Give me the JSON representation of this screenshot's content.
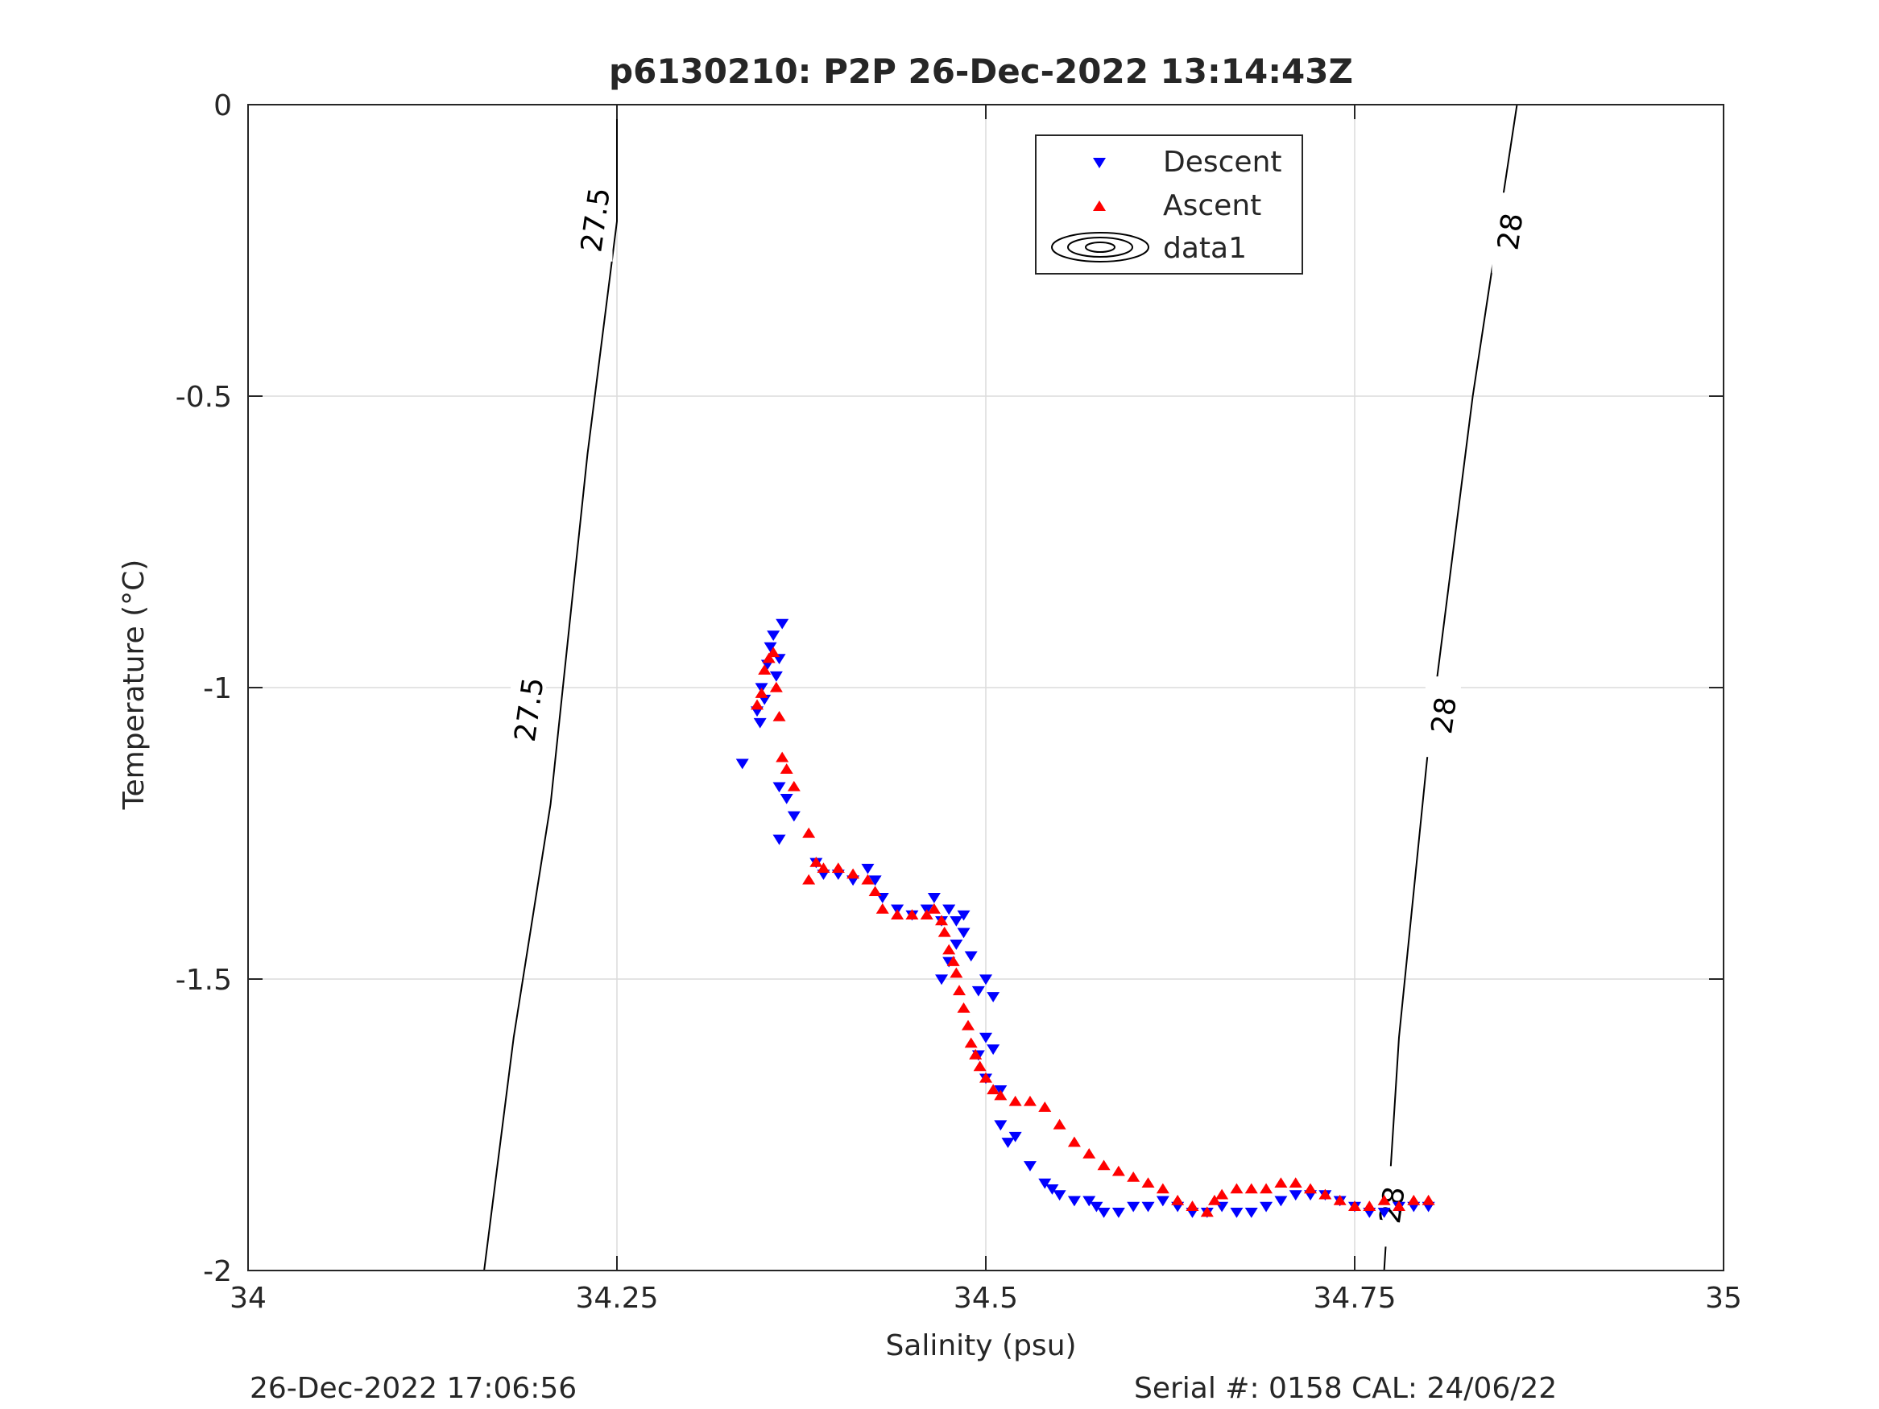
{
  "chart_data": {
    "type": "scatter",
    "title": "p6130210: P2P 26-Dec-2022 13:14:43Z",
    "xlabel": "Salinity (psu)",
    "ylabel": "Temperature (°C)",
    "xlim": [
      34,
      35
    ],
    "ylim": [
      -2,
      0
    ],
    "xticks": [
      "34",
      "34.25",
      "34.5",
      "34.75",
      "35"
    ],
    "yticks": [
      "0",
      "-0.5",
      "-1",
      "-1.5",
      "-2"
    ],
    "grid": true,
    "legend": {
      "placement": "top-center-right",
      "entries": [
        "Descent",
        "Ascent",
        "data1"
      ]
    },
    "colors": {
      "descent": "#0000ff",
      "ascent": "#ff0000",
      "contour": "#000000",
      "grid": "#dcdcdc"
    },
    "contours": [
      {
        "label": "27.5",
        "points": [
          [
            34.16,
            -2.0
          ],
          [
            34.18,
            -1.6
          ],
          [
            34.205,
            -1.2
          ],
          [
            34.23,
            -0.6
          ],
          [
            34.25,
            -0.2
          ],
          [
            34.25,
            0.0
          ]
        ]
      },
      {
        "label": "28",
        "points": [
          [
            34.77,
            -2.0
          ],
          [
            34.78,
            -1.6
          ],
          [
            34.8,
            -1.1
          ],
          [
            34.83,
            -0.5
          ],
          [
            34.86,
            0.0
          ]
        ]
      }
    ],
    "contour_labels": [
      {
        "text": "27.5",
        "x": 34.235,
        "y": -0.2
      },
      {
        "text": "27.5",
        "x": 34.19,
        "y": -1.04
      },
      {
        "text": "28",
        "x": 34.855,
        "y": -0.22
      },
      {
        "text": "28",
        "x": 34.81,
        "y": -1.05
      },
      {
        "text": "28",
        "x": 34.775,
        "y": -1.89
      }
    ],
    "series": [
      {
        "name": "Descent",
        "marker": "triangle-down",
        "points": [
          [
            34.335,
            -1.13
          ],
          [
            34.345,
            -1.04
          ],
          [
            34.347,
            -1.06
          ],
          [
            34.348,
            -1.0
          ],
          [
            34.35,
            -1.02
          ],
          [
            34.352,
            -0.96
          ],
          [
            34.354,
            -0.93
          ],
          [
            34.356,
            -0.91
          ],
          [
            34.358,
            -0.98
          ],
          [
            34.36,
            -0.95
          ],
          [
            34.362,
            -0.89
          ],
          [
            34.36,
            -1.17
          ],
          [
            34.365,
            -1.19
          ],
          [
            34.37,
            -1.22
          ],
          [
            34.36,
            -1.26
          ],
          [
            34.385,
            -1.3
          ],
          [
            34.39,
            -1.32
          ],
          [
            34.4,
            -1.32
          ],
          [
            34.41,
            -1.33
          ],
          [
            34.42,
            -1.31
          ],
          [
            34.425,
            -1.33
          ],
          [
            34.43,
            -1.36
          ],
          [
            34.44,
            -1.38
          ],
          [
            34.45,
            -1.39
          ],
          [
            34.46,
            -1.38
          ],
          [
            34.465,
            -1.36
          ],
          [
            34.47,
            -1.4
          ],
          [
            34.475,
            -1.38
          ],
          [
            34.48,
            -1.4
          ],
          [
            34.485,
            -1.39
          ],
          [
            34.47,
            -1.5
          ],
          [
            34.475,
            -1.47
          ],
          [
            34.48,
            -1.44
          ],
          [
            34.485,
            -1.42
          ],
          [
            34.49,
            -1.46
          ],
          [
            34.495,
            -1.52
          ],
          [
            34.5,
            -1.5
          ],
          [
            34.505,
            -1.53
          ],
          [
            34.5,
            -1.6
          ],
          [
            34.495,
            -1.63
          ],
          [
            34.505,
            -1.62
          ],
          [
            34.5,
            -1.67
          ],
          [
            34.51,
            -1.69
          ],
          [
            34.51,
            -1.75
          ],
          [
            34.515,
            -1.78
          ],
          [
            34.52,
            -1.77
          ],
          [
            34.53,
            -1.82
          ],
          [
            34.54,
            -1.85
          ],
          [
            34.545,
            -1.86
          ],
          [
            34.55,
            -1.87
          ],
          [
            34.56,
            -1.88
          ],
          [
            34.57,
            -1.88
          ],
          [
            34.575,
            -1.89
          ],
          [
            34.58,
            -1.9
          ],
          [
            34.59,
            -1.9
          ],
          [
            34.6,
            -1.89
          ],
          [
            34.61,
            -1.89
          ],
          [
            34.62,
            -1.88
          ],
          [
            34.63,
            -1.89
          ],
          [
            34.64,
            -1.9
          ],
          [
            34.65,
            -1.9
          ],
          [
            34.66,
            -1.89
          ],
          [
            34.67,
            -1.9
          ],
          [
            34.68,
            -1.9
          ],
          [
            34.69,
            -1.89
          ],
          [
            34.7,
            -1.88
          ],
          [
            34.71,
            -1.87
          ],
          [
            34.72,
            -1.87
          ],
          [
            34.73,
            -1.87
          ],
          [
            34.74,
            -1.88
          ],
          [
            34.75,
            -1.89
          ],
          [
            34.76,
            -1.9
          ],
          [
            34.77,
            -1.9
          ],
          [
            34.78,
            -1.89
          ],
          [
            34.79,
            -1.89
          ],
          [
            34.8,
            -1.89
          ]
        ]
      },
      {
        "name": "Ascent",
        "marker": "triangle-up",
        "points": [
          [
            34.345,
            -1.03
          ],
          [
            34.348,
            -1.01
          ],
          [
            34.35,
            -0.97
          ],
          [
            34.353,
            -0.95
          ],
          [
            34.356,
            -0.94
          ],
          [
            34.358,
            -1.0
          ],
          [
            34.36,
            -1.05
          ],
          [
            34.362,
            -1.12
          ],
          [
            34.365,
            -1.14
          ],
          [
            34.37,
            -1.17
          ],
          [
            34.38,
            -1.25
          ],
          [
            34.38,
            -1.33
          ],
          [
            34.385,
            -1.3
          ],
          [
            34.39,
            -1.31
          ],
          [
            34.4,
            -1.31
          ],
          [
            34.41,
            -1.32
          ],
          [
            34.42,
            -1.33
          ],
          [
            34.425,
            -1.35
          ],
          [
            34.43,
            -1.38
          ],
          [
            34.44,
            -1.39
          ],
          [
            34.45,
            -1.39
          ],
          [
            34.46,
            -1.39
          ],
          [
            34.465,
            -1.38
          ],
          [
            34.47,
            -1.4
          ],
          [
            34.472,
            -1.42
          ],
          [
            34.475,
            -1.45
          ],
          [
            34.478,
            -1.47
          ],
          [
            34.48,
            -1.49
          ],
          [
            34.482,
            -1.52
          ],
          [
            34.485,
            -1.55
          ],
          [
            34.488,
            -1.58
          ],
          [
            34.49,
            -1.61
          ],
          [
            34.493,
            -1.63
          ],
          [
            34.496,
            -1.65
          ],
          [
            34.5,
            -1.67
          ],
          [
            34.505,
            -1.69
          ],
          [
            34.51,
            -1.7
          ],
          [
            34.52,
            -1.71
          ],
          [
            34.53,
            -1.71
          ],
          [
            34.54,
            -1.72
          ],
          [
            34.55,
            -1.75
          ],
          [
            34.56,
            -1.78
          ],
          [
            34.57,
            -1.8
          ],
          [
            34.58,
            -1.82
          ],
          [
            34.59,
            -1.83
          ],
          [
            34.6,
            -1.84
          ],
          [
            34.61,
            -1.85
          ],
          [
            34.62,
            -1.86
          ],
          [
            34.63,
            -1.88
          ],
          [
            34.64,
            -1.89
          ],
          [
            34.65,
            -1.9
          ],
          [
            34.655,
            -1.88
          ],
          [
            34.66,
            -1.87
          ],
          [
            34.67,
            -1.86
          ],
          [
            34.68,
            -1.86
          ],
          [
            34.69,
            -1.86
          ],
          [
            34.7,
            -1.85
          ],
          [
            34.71,
            -1.85
          ],
          [
            34.72,
            -1.86
          ],
          [
            34.73,
            -1.87
          ],
          [
            34.74,
            -1.88
          ],
          [
            34.75,
            -1.89
          ],
          [
            34.76,
            -1.89
          ],
          [
            34.77,
            -1.88
          ],
          [
            34.78,
            -1.89
          ],
          [
            34.79,
            -1.88
          ],
          [
            34.8,
            -1.88
          ]
        ]
      }
    ]
  },
  "footer": {
    "timestamp": "26-Dec-2022 17:06:56",
    "serial": "Serial #: 0158  CAL: 24/06/22"
  }
}
